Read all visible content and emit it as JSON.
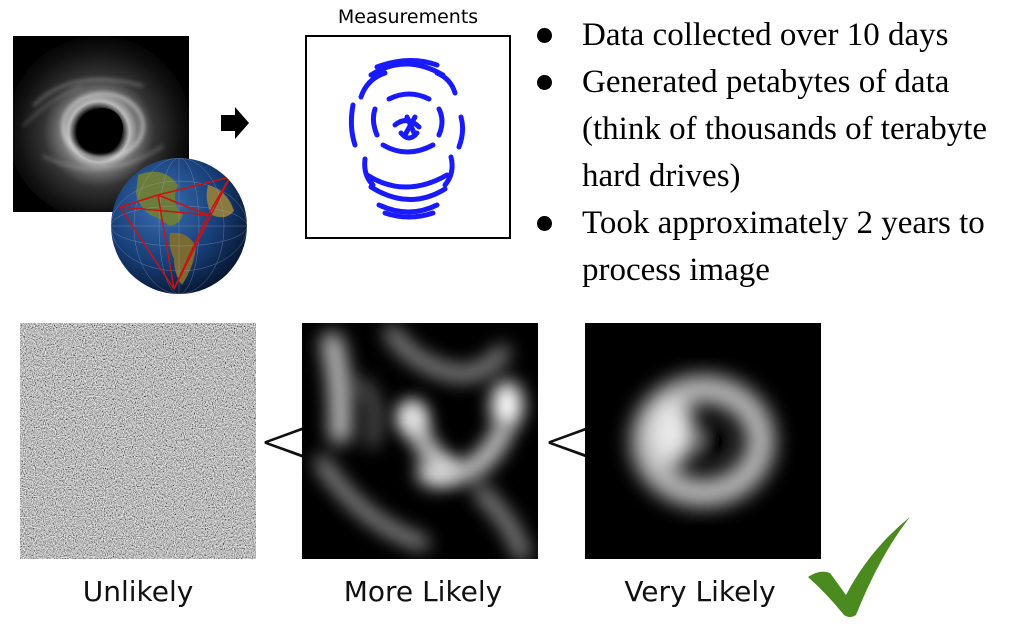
{
  "measurements_title": "Measurements",
  "bullets": [
    "Data collected over 10 days",
    "Generated petabytes of data (think of thousands of terabyte hard drives)",
    "Took approximately 2 years to process image"
  ],
  "comparison": {
    "left_label": "Unlikely",
    "middle_label": "More Likely",
    "right_label": "Very Likely",
    "less_than_1": "<",
    "less_than_2": "<"
  },
  "colors": {
    "measurement_arcs": "#1a1aff",
    "checkmark": "#4a8a1e",
    "telescope_links": "#cc1111"
  },
  "icons": [
    "right-arrow-icon",
    "checkmark-icon",
    "earth-globe-icon"
  ]
}
